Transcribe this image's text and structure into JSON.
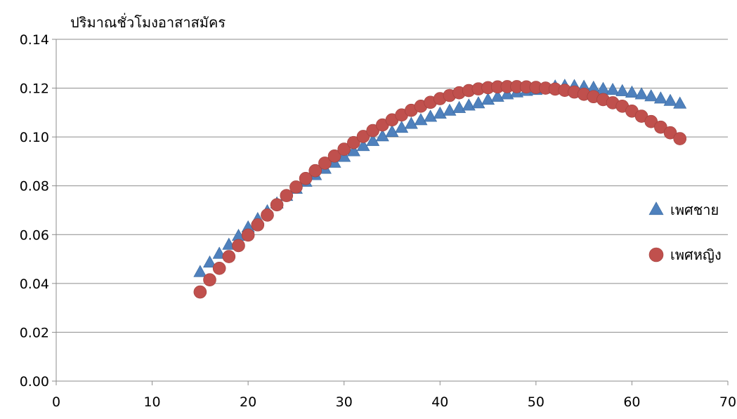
{
  "chart_data": {
    "type": "scatter",
    "title": "",
    "xlabel": "",
    "ylabel": "ปริมาณชั่วโมงอาสาสมัคร",
    "xlim": [
      0,
      70
    ],
    "ylim": [
      0,
      0.14
    ],
    "x_ticks": [
      "0",
      "10",
      "20",
      "30",
      "40",
      "50",
      "60",
      "70"
    ],
    "y_ticks": [
      "0.00",
      "0.02",
      "0.04",
      "0.06",
      "0.08",
      "0.10",
      "0.12",
      "0.14"
    ],
    "grid": "horizontal",
    "legend_position": "right",
    "series": [
      {
        "name": "เพศชาย",
        "marker": "triangle",
        "color": "#4f81bd",
        "x": [
          15,
          16,
          17,
          18,
          19,
          20,
          21,
          22,
          23,
          24,
          25,
          26,
          27,
          28,
          29,
          30,
          31,
          32,
          33,
          34,
          35,
          36,
          37,
          38,
          39,
          40,
          41,
          42,
          43,
          44,
          45,
          46,
          47,
          48,
          49,
          50,
          51,
          52,
          53,
          54,
          55,
          56,
          57,
          58,
          59,
          60,
          61,
          62,
          63,
          64,
          65
        ],
        "y": [
          0.0445,
          0.0484,
          0.052,
          0.0557,
          0.0593,
          0.0628,
          0.0662,
          0.0694,
          0.0726,
          0.0757,
          0.0786,
          0.0815,
          0.0842,
          0.0868,
          0.0893,
          0.0917,
          0.094,
          0.0961,
          0.0982,
          0.1001,
          0.1019,
          0.1036,
          0.1052,
          0.1067,
          0.1081,
          0.1094,
          0.1106,
          0.1117,
          0.1127,
          0.1136,
          0.1151,
          0.1163,
          0.1173,
          0.1181,
          0.1187,
          0.1191,
          0.1197,
          0.1205,
          0.1208,
          0.1207,
          0.1204,
          0.12,
          0.1195,
          0.1191,
          0.1186,
          0.118,
          0.1173,
          0.1165,
          0.1156,
          0.1146,
          0.1135
        ]
      },
      {
        "name": "เพศหญิง",
        "marker": "circle",
        "color": "#c0504d",
        "x": [
          15,
          16,
          17,
          18,
          19,
          20,
          21,
          22,
          23,
          24,
          25,
          26,
          27,
          28,
          29,
          30,
          31,
          32,
          33,
          34,
          35,
          36,
          37,
          38,
          39,
          40,
          41,
          42,
          43,
          44,
          45,
          46,
          47,
          48,
          49,
          50,
          51,
          52,
          53,
          54,
          55,
          56,
          57,
          58,
          59,
          60,
          61,
          62,
          63,
          64,
          65
        ],
        "y": [
          0.0365,
          0.0415,
          0.0462,
          0.051,
          0.0555,
          0.0598,
          0.064,
          0.068,
          0.0722,
          0.076,
          0.0795,
          0.083,
          0.0862,
          0.0893,
          0.0922,
          0.095,
          0.0977,
          0.1002,
          0.1026,
          0.1049,
          0.107,
          0.109,
          0.1109,
          0.1126,
          0.1142,
          0.1157,
          0.117,
          0.1181,
          0.119,
          0.1197,
          0.1202,
          0.1205,
          0.1206,
          0.1206,
          0.1205,
          0.1203,
          0.12,
          0.1196,
          0.1191,
          0.1184,
          0.1175,
          0.1165,
          0.1153,
          0.114,
          0.1126,
          0.1106,
          0.1085,
          0.1063,
          0.104,
          0.1017,
          0.0993
        ]
      }
    ]
  }
}
